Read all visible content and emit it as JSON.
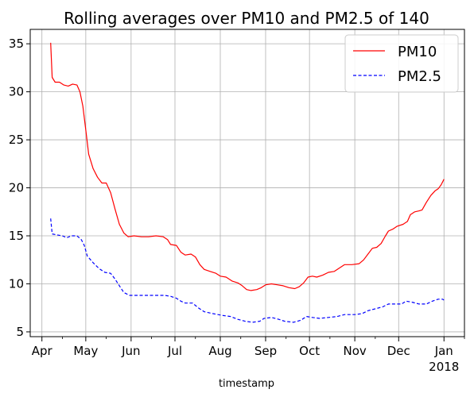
{
  "chart_data": {
    "type": "line",
    "title": "Rolling averages over PM10 and PM2.5 of 140",
    "xlabel": "timestamp",
    "ylabel": "",
    "x_tick_labels": [
      "Apr",
      "May",
      "Jun",
      "Jul",
      "Aug",
      "Sep",
      "Oct",
      "Nov",
      "Dec",
      "Jan"
    ],
    "x_tick_dates": [
      "2017-04-01",
      "2017-05-01",
      "2017-06-01",
      "2017-07-01",
      "2017-08-01",
      "2017-09-01",
      "2017-10-01",
      "2017-11-01",
      "2017-12-01",
      "2018-01-01"
    ],
    "x_tick_year_label": "2018",
    "xlim": [
      "2017-03-24",
      "2018-01-15"
    ],
    "ylim": [
      4.5,
      36.5
    ],
    "y_ticks": [
      5,
      10,
      15,
      20,
      25,
      30,
      35
    ],
    "grid": true,
    "legend_position": "top-right",
    "series": [
      {
        "name": "PM10",
        "color": "#ff0000",
        "line_style": "solid",
        "points": [
          [
            "2017-04-07",
            35.1
          ],
          [
            "2017-04-08",
            31.5
          ],
          [
            "2017-04-10",
            31.0
          ],
          [
            "2017-04-13",
            31.0
          ],
          [
            "2017-04-16",
            30.7
          ],
          [
            "2017-04-19",
            30.6
          ],
          [
            "2017-04-22",
            30.8
          ],
          [
            "2017-04-25",
            30.7
          ],
          [
            "2017-04-27",
            30.0
          ],
          [
            "2017-04-29",
            28.5
          ],
          [
            "2017-05-01",
            26.0
          ],
          [
            "2017-05-03",
            23.5
          ],
          [
            "2017-05-06",
            22.0
          ],
          [
            "2017-05-09",
            21.1
          ],
          [
            "2017-05-12",
            20.5
          ],
          [
            "2017-05-15",
            20.5
          ],
          [
            "2017-05-18",
            19.5
          ],
          [
            "2017-05-21",
            17.8
          ],
          [
            "2017-05-24",
            16.2
          ],
          [
            "2017-05-27",
            15.3
          ],
          [
            "2017-05-30",
            14.9
          ],
          [
            "2017-06-03",
            15.0
          ],
          [
            "2017-06-08",
            14.9
          ],
          [
            "2017-06-13",
            14.9
          ],
          [
            "2017-06-18",
            15.0
          ],
          [
            "2017-06-23",
            14.9
          ],
          [
            "2017-06-26",
            14.6
          ],
          [
            "2017-06-28",
            14.1
          ],
          [
            "2017-07-02",
            14.0
          ],
          [
            "2017-07-05",
            13.3
          ],
          [
            "2017-07-08",
            13.0
          ],
          [
            "2017-07-12",
            13.1
          ],
          [
            "2017-07-15",
            12.8
          ],
          [
            "2017-07-18",
            12.0
          ],
          [
            "2017-07-21",
            11.5
          ],
          [
            "2017-07-25",
            11.3
          ],
          [
            "2017-07-29",
            11.1
          ],
          [
            "2017-08-01",
            10.8
          ],
          [
            "2017-08-05",
            10.7
          ],
          [
            "2017-08-09",
            10.3
          ],
          [
            "2017-08-13",
            10.1
          ],
          [
            "2017-08-16",
            9.8
          ],
          [
            "2017-08-19",
            9.4
          ],
          [
            "2017-08-22",
            9.3
          ],
          [
            "2017-08-26",
            9.4
          ],
          [
            "2017-08-29",
            9.6
          ],
          [
            "2017-09-01",
            9.9
          ],
          [
            "2017-09-05",
            10.0
          ],
          [
            "2017-09-09",
            9.9
          ],
          [
            "2017-09-13",
            9.8
          ],
          [
            "2017-09-17",
            9.6
          ],
          [
            "2017-09-21",
            9.5
          ],
          [
            "2017-09-24",
            9.7
          ],
          [
            "2017-09-27",
            10.1
          ],
          [
            "2017-09-30",
            10.7
          ],
          [
            "2017-10-03",
            10.8
          ],
          [
            "2017-10-06",
            10.7
          ],
          [
            "2017-10-10",
            10.9
          ],
          [
            "2017-10-14",
            11.2
          ],
          [
            "2017-10-18",
            11.3
          ],
          [
            "2017-10-21",
            11.6
          ],
          [
            "2017-10-25",
            12.0
          ],
          [
            "2017-10-30",
            12.0
          ],
          [
            "2017-11-04",
            12.1
          ],
          [
            "2017-11-07",
            12.5
          ],
          [
            "2017-11-10",
            13.1
          ],
          [
            "2017-11-13",
            13.7
          ],
          [
            "2017-11-16",
            13.8
          ],
          [
            "2017-11-19",
            14.2
          ],
          [
            "2017-11-22",
            15.0
          ],
          [
            "2017-11-24",
            15.5
          ],
          [
            "2017-11-27",
            15.7
          ],
          [
            "2017-11-30",
            16.0
          ],
          [
            "2017-12-04",
            16.2
          ],
          [
            "2017-12-07",
            16.5
          ],
          [
            "2017-12-09",
            17.2
          ],
          [
            "2017-12-12",
            17.5
          ],
          [
            "2017-12-15",
            17.6
          ],
          [
            "2017-12-17",
            17.7
          ],
          [
            "2017-12-20",
            18.5
          ],
          [
            "2017-12-23",
            19.2
          ],
          [
            "2017-12-26",
            19.7
          ],
          [
            "2017-12-28",
            19.9
          ],
          [
            "2017-12-30",
            20.3
          ],
          [
            "2018-01-01",
            20.9
          ]
        ]
      },
      {
        "name": "PM2.5",
        "color": "#0000ff",
        "line_style": "dashed",
        "points": [
          [
            "2017-04-07",
            16.8
          ],
          [
            "2017-04-08",
            15.2
          ],
          [
            "2017-04-11",
            15.1
          ],
          [
            "2017-04-15",
            15.0
          ],
          [
            "2017-04-18",
            14.8
          ],
          [
            "2017-04-21",
            15.0
          ],
          [
            "2017-04-25",
            15.0
          ],
          [
            "2017-04-28",
            14.6
          ],
          [
            "2017-04-30",
            14.0
          ],
          [
            "2017-05-02",
            12.9
          ],
          [
            "2017-05-06",
            12.2
          ],
          [
            "2017-05-10",
            11.6
          ],
          [
            "2017-05-14",
            11.2
          ],
          [
            "2017-05-18",
            11.1
          ],
          [
            "2017-05-21",
            10.5
          ],
          [
            "2017-05-24",
            9.8
          ],
          [
            "2017-05-27",
            9.1
          ],
          [
            "2017-05-31",
            8.8
          ],
          [
            "2017-06-05",
            8.8
          ],
          [
            "2017-06-12",
            8.8
          ],
          [
            "2017-06-18",
            8.8
          ],
          [
            "2017-06-24",
            8.8
          ],
          [
            "2017-06-28",
            8.7
          ],
          [
            "2017-07-02",
            8.5
          ],
          [
            "2017-07-05",
            8.2
          ],
          [
            "2017-07-08",
            8.0
          ],
          [
            "2017-07-13",
            8.0
          ],
          [
            "2017-07-17",
            7.5
          ],
          [
            "2017-07-21",
            7.1
          ],
          [
            "2017-07-27",
            6.9
          ],
          [
            "2017-08-03",
            6.7
          ],
          [
            "2017-08-08",
            6.6
          ],
          [
            "2017-08-13",
            6.3
          ],
          [
            "2017-08-18",
            6.1
          ],
          [
            "2017-08-23",
            6.0
          ],
          [
            "2017-08-28",
            6.1
          ],
          [
            "2017-08-31",
            6.4
          ],
          [
            "2017-09-05",
            6.5
          ],
          [
            "2017-09-10",
            6.3
          ],
          [
            "2017-09-14",
            6.1
          ],
          [
            "2017-09-20",
            6.0
          ],
          [
            "2017-09-25",
            6.2
          ],
          [
            "2017-09-29",
            6.6
          ],
          [
            "2017-10-03",
            6.5
          ],
          [
            "2017-10-08",
            6.4
          ],
          [
            "2017-10-14",
            6.5
          ],
          [
            "2017-10-20",
            6.6
          ],
          [
            "2017-10-25",
            6.8
          ],
          [
            "2017-11-01",
            6.8
          ],
          [
            "2017-11-06",
            6.9
          ],
          [
            "2017-11-10",
            7.2
          ],
          [
            "2017-11-15",
            7.4
          ],
          [
            "2017-11-20",
            7.6
          ],
          [
            "2017-11-24",
            7.9
          ],
          [
            "2017-11-29",
            7.9
          ],
          [
            "2017-12-03",
            7.9
          ],
          [
            "2017-12-06",
            8.2
          ],
          [
            "2017-12-10",
            8.1
          ],
          [
            "2017-12-15",
            7.9
          ],
          [
            "2017-12-20",
            7.9
          ],
          [
            "2017-12-24",
            8.2
          ],
          [
            "2017-12-28",
            8.4
          ],
          [
            "2017-12-31",
            8.4
          ],
          [
            "2018-01-01",
            8.3
          ]
        ]
      }
    ]
  }
}
